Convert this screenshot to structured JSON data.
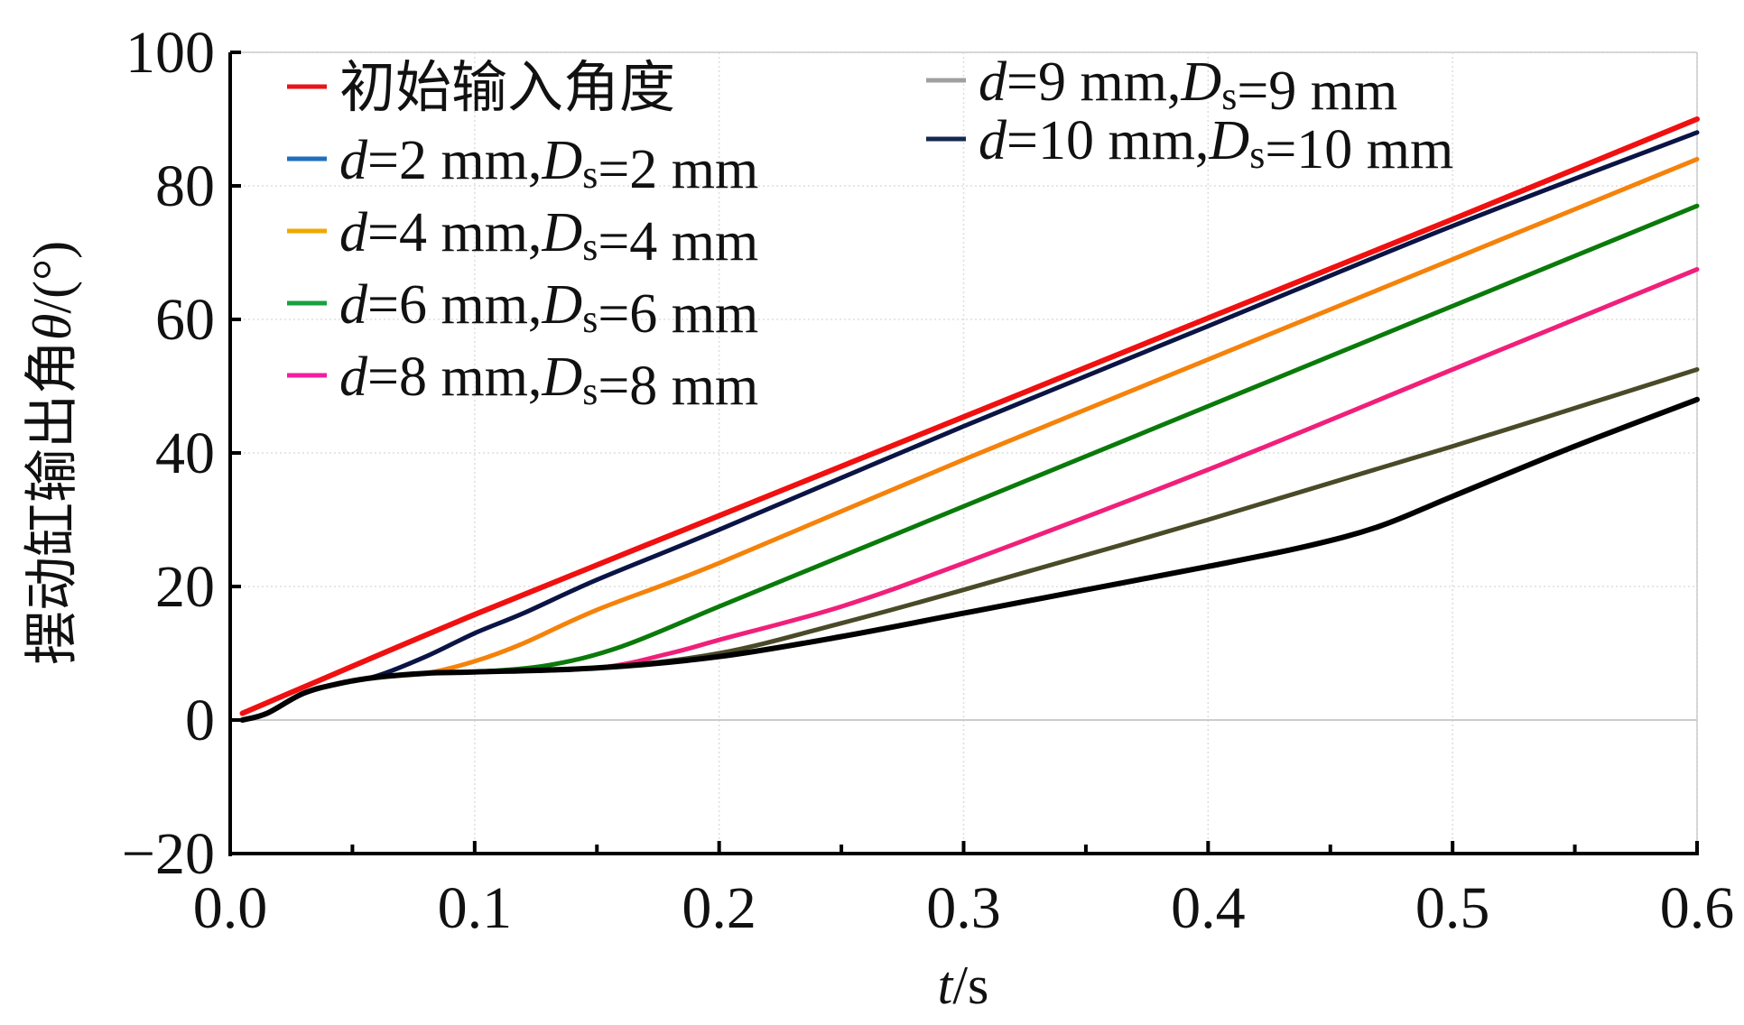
{
  "chart_data": {
    "type": "line",
    "xlabel": {
      "italic": "t",
      "rest": "/s"
    },
    "ylabel": {
      "text": "摆动缸输出角",
      "italic": "θ",
      "rest": "/(°)"
    },
    "xlim": [
      0,
      0.6
    ],
    "ylim": [
      -20,
      100
    ],
    "xticks": [
      "0.0",
      "0.1",
      "0.2",
      "0.3",
      "0.4",
      "0.5",
      "0.6"
    ],
    "xtick_values": [
      0,
      0.1,
      0.2,
      0.3,
      0.4,
      0.5,
      0.6
    ],
    "yticks": [
      "−20",
      "0",
      "20",
      "40",
      "60",
      "80",
      "100"
    ],
    "ytick_values": [
      -20,
      0,
      20,
      40,
      60,
      80,
      100
    ],
    "grid": true,
    "legend_placement": "top-left, two columns",
    "series": [
      {
        "name": "初始输入角度",
        "label_parts": [
          {
            "t": "初始输入角度",
            "s": "n"
          }
        ],
        "legend_color": "#e8141b",
        "color": "#f01010",
        "x": [
          0.005,
          0.1,
          0.2,
          0.3,
          0.4,
          0.5,
          0.6
        ],
        "y": [
          1,
          15.8,
          30.6,
          45.4,
          60.2,
          75,
          90
        ]
      },
      {
        "name": "d=2 mm,Ds=2 mm",
        "label_parts": [
          {
            "t": "d",
            "s": "i"
          },
          {
            "t": "=2 mm,",
            "s": "n"
          },
          {
            "t": "D",
            "s": "i"
          },
          {
            "t": "s",
            "s": "sub"
          },
          {
            "t": "=2 mm",
            "s": "n"
          }
        ],
        "legend_color": "#1f6fbf",
        "color": "#0a1445",
        "x": [
          0.005,
          0.015,
          0.03,
          0.045,
          0.06,
          0.08,
          0.1,
          0.12,
          0.15,
          0.2,
          0.3,
          0.4,
          0.5,
          0.6
        ],
        "y": [
          0,
          1,
          4,
          5.5,
          6.6,
          9.5,
          13,
          16,
          21,
          28.5,
          44,
          59,
          74,
          88
        ]
      },
      {
        "name": "d=4 mm,Ds=4 mm",
        "label_parts": [
          {
            "t": "d",
            "s": "i"
          },
          {
            "t": "=4 mm,",
            "s": "n"
          },
          {
            "t": "D",
            "s": "i"
          },
          {
            "t": "s",
            "s": "sub"
          },
          {
            "t": "=4 mm",
            "s": "n"
          }
        ],
        "legend_color": "#f0a800",
        "color": "#f5820a",
        "x": [
          0.005,
          0.015,
          0.03,
          0.045,
          0.06,
          0.08,
          0.1,
          0.12,
          0.15,
          0.2,
          0.3,
          0.4,
          0.5,
          0.6
        ],
        "y": [
          0,
          1,
          4,
          5.5,
          6.4,
          7,
          8.8,
          11.5,
          16.5,
          23.5,
          39,
          54,
          69,
          84
        ]
      },
      {
        "name": "d=6 mm,Ds=6 mm",
        "label_parts": [
          {
            "t": "d",
            "s": "i"
          },
          {
            "t": "=6 mm,",
            "s": "n"
          },
          {
            "t": "D",
            "s": "i"
          },
          {
            "t": "s",
            "s": "sub"
          },
          {
            "t": "=6 mm",
            "s": "n"
          }
        ],
        "legend_color": "#17a03c",
        "color": "#0a7a0a",
        "x": [
          0.005,
          0.015,
          0.03,
          0.045,
          0.06,
          0.08,
          0.1,
          0.13,
          0.16,
          0.2,
          0.25,
          0.3,
          0.4,
          0.5,
          0.6
        ],
        "y": [
          0,
          1,
          4,
          5.5,
          6.4,
          7,
          7.2,
          8.2,
          11,
          17,
          24.5,
          32,
          47,
          62,
          77
        ]
      },
      {
        "name": "d=8 mm,Ds=8 mm",
        "label_parts": [
          {
            "t": "d",
            "s": "i"
          },
          {
            "t": "=8 mm,",
            "s": "n"
          },
          {
            "t": "D",
            "s": "i"
          },
          {
            "t": "s",
            "s": "sub"
          },
          {
            "t": "=8 mm",
            "s": "n"
          }
        ],
        "legend_color": "#f01ea0",
        "color": "#f0207a",
        "x": [
          0.005,
          0.015,
          0.03,
          0.045,
          0.06,
          0.08,
          0.1,
          0.15,
          0.18,
          0.2,
          0.25,
          0.3,
          0.4,
          0.5,
          0.6
        ],
        "y": [
          0,
          1,
          4,
          5.5,
          6.4,
          7,
          7.2,
          7.8,
          10,
          12,
          17,
          23.5,
          37.5,
          52.5,
          67.5
        ]
      },
      {
        "name": "d=9 mm,Ds=9 mm",
        "label_parts": [
          {
            "t": "d",
            "s": "i"
          },
          {
            "t": "=9 mm,",
            "s": "n"
          },
          {
            "t": "D",
            "s": "i"
          },
          {
            "t": "s",
            "s": "sub"
          },
          {
            "t": "=9 mm",
            "s": "n"
          }
        ],
        "legend_color": "#a0a0a0",
        "color": "#4a4a28",
        "x": [
          0.005,
          0.015,
          0.03,
          0.045,
          0.06,
          0.08,
          0.1,
          0.15,
          0.2,
          0.25,
          0.3,
          0.4,
          0.5,
          0.6
        ],
        "y": [
          0,
          1,
          4,
          5.5,
          6.4,
          7,
          7.2,
          7.8,
          10,
          14.5,
          19.5,
          30,
          41,
          52.5
        ]
      },
      {
        "name": "d=10 mm,Ds=10 mm",
        "label_parts": [
          {
            "t": "d",
            "s": "i"
          },
          {
            "t": "=10 mm,",
            "s": "n"
          },
          {
            "t": "D",
            "s": "i"
          },
          {
            "t": "s",
            "s": "sub"
          },
          {
            "t": "=10 mm",
            "s": "n"
          }
        ],
        "legend_color": "#152850",
        "color": "#000000",
        "x": [
          0.005,
          0.015,
          0.03,
          0.045,
          0.06,
          0.08,
          0.1,
          0.15,
          0.2,
          0.25,
          0.3,
          0.35,
          0.4,
          0.44,
          0.47,
          0.5,
          0.55,
          0.6
        ],
        "y": [
          0,
          1,
          4,
          5.5,
          6.4,
          7,
          7.2,
          7.8,
          9.5,
          12.5,
          16,
          19.5,
          23,
          26,
          29,
          33.5,
          41,
          48
        ]
      }
    ]
  }
}
